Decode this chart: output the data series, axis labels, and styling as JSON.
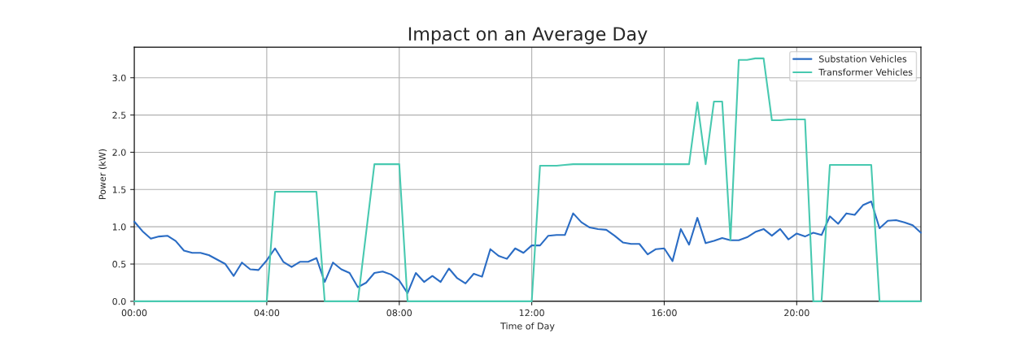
{
  "chart_data": {
    "type": "line",
    "title": "Impact on an Average Day",
    "xlabel": "Time of Day",
    "ylabel": "Power (kW)",
    "x": [
      0,
      0.25,
      0.5,
      0.75,
      1,
      1.25,
      1.5,
      1.75,
      2,
      2.25,
      2.5,
      2.75,
      3,
      3.25,
      3.5,
      3.75,
      4,
      4.25,
      4.5,
      4.75,
      5,
      5.25,
      5.5,
      5.75,
      6,
      6.25,
      6.5,
      6.75,
      7,
      7.25,
      7.5,
      7.75,
      8,
      8.25,
      8.5,
      8.75,
      9,
      9.25,
      9.5,
      9.75,
      10,
      10.25,
      10.5,
      10.75,
      11,
      11.25,
      11.5,
      11.75,
      12,
      12.25,
      12.5,
      12.75,
      13,
      13.25,
      13.5,
      13.75,
      14,
      14.25,
      14.5,
      14.75,
      15,
      15.25,
      15.5,
      15.75,
      16,
      16.25,
      16.5,
      16.75,
      17,
      17.25,
      17.5,
      17.75,
      18,
      18.25,
      18.5,
      18.75,
      19,
      19.25,
      19.5,
      19.75,
      20,
      20.25,
      20.5,
      20.75,
      21,
      21.25,
      21.5,
      21.75,
      22,
      22.25,
      22.5,
      22.75,
      23,
      23.25,
      23.5,
      23.75
    ],
    "series": [
      {
        "name": "Substation Vehicles",
        "color": "#2a6cc4",
        "values": [
          1.07,
          0.94,
          0.84,
          0.87,
          0.88,
          0.81,
          0.68,
          0.65,
          0.65,
          0.62,
          0.56,
          0.5,
          0.34,
          0.52,
          0.43,
          0.42,
          0.55,
          0.71,
          0.53,
          0.46,
          0.53,
          0.53,
          0.58,
          0.26,
          0.52,
          0.43,
          0.38,
          0.19,
          0.25,
          0.38,
          0.4,
          0.36,
          0.28,
          0.11,
          0.38,
          0.26,
          0.34,
          0.26,
          0.44,
          0.31,
          0.24,
          0.37,
          0.33,
          0.7,
          0.61,
          0.57,
          0.71,
          0.65,
          0.75,
          0.75,
          0.88,
          0.89,
          0.89,
          1.18,
          1.06,
          0.99,
          0.97,
          0.96,
          0.88,
          0.79,
          0.77,
          0.77,
          0.63,
          0.7,
          0.71,
          0.54,
          0.97,
          0.76,
          1.12,
          0.78,
          0.81,
          0.85,
          0.82,
          0.82,
          0.86,
          0.93,
          0.97,
          0.88,
          0.97,
          0.83,
          0.91,
          0.87,
          0.92,
          0.89,
          1.14,
          1.04,
          1.18,
          1.16,
          1.29,
          1.34,
          0.98,
          1.08,
          1.09,
          1.06,
          1.02,
          0.92
        ]
      },
      {
        "name": "Transformer Vehicles",
        "color": "#48c9b0",
        "values": [
          0,
          0,
          0,
          0,
          0,
          0,
          0,
          0,
          0,
          0,
          0,
          0,
          0,
          0,
          0,
          0,
          0,
          1.47,
          1.47,
          1.47,
          1.47,
          1.47,
          1.47,
          0,
          0,
          0,
          0,
          0,
          0.92,
          1.84,
          1.84,
          1.84,
          1.84,
          0,
          0,
          0,
          0,
          0,
          0,
          0,
          0,
          0,
          0,
          0,
          0,
          0,
          0,
          0,
          0,
          1.82,
          1.82,
          1.82,
          1.83,
          1.84,
          1.84,
          1.84,
          1.84,
          1.84,
          1.84,
          1.84,
          1.84,
          1.84,
          1.84,
          1.84,
          1.84,
          1.84,
          1.84,
          1.84,
          2.67,
          1.84,
          2.68,
          2.68,
          0.82,
          3.24,
          3.24,
          3.26,
          3.26,
          2.43,
          2.43,
          2.44,
          2.44,
          2.44,
          0,
          0,
          1.83,
          1.83,
          1.83,
          1.83,
          1.83,
          1.83,
          0,
          0,
          0,
          0,
          0,
          0
        ]
      }
    ],
    "xlim": [
      0,
      23.75
    ],
    "xticks": [
      {
        "value": 0,
        "label": "00:00"
      },
      {
        "value": 4,
        "label": "04:00"
      },
      {
        "value": 8,
        "label": "08:00"
      },
      {
        "value": 12,
        "label": "12:00"
      },
      {
        "value": 16,
        "label": "16:00"
      },
      {
        "value": 20,
        "label": "20:00"
      }
    ],
    "ylim": [
      0,
      3.41
    ],
    "yticks": [
      {
        "value": 0,
        "label": "0.0"
      },
      {
        "value": 0.5,
        "label": "0.5"
      },
      {
        "value": 1,
        "label": "1.0"
      },
      {
        "value": 1.5,
        "label": "1.5"
      },
      {
        "value": 2,
        "label": "2.0"
      },
      {
        "value": 2.5,
        "label": "2.5"
      },
      {
        "value": 3,
        "label": "3.0"
      }
    ],
    "grid": true,
    "legend": "top right"
  }
}
